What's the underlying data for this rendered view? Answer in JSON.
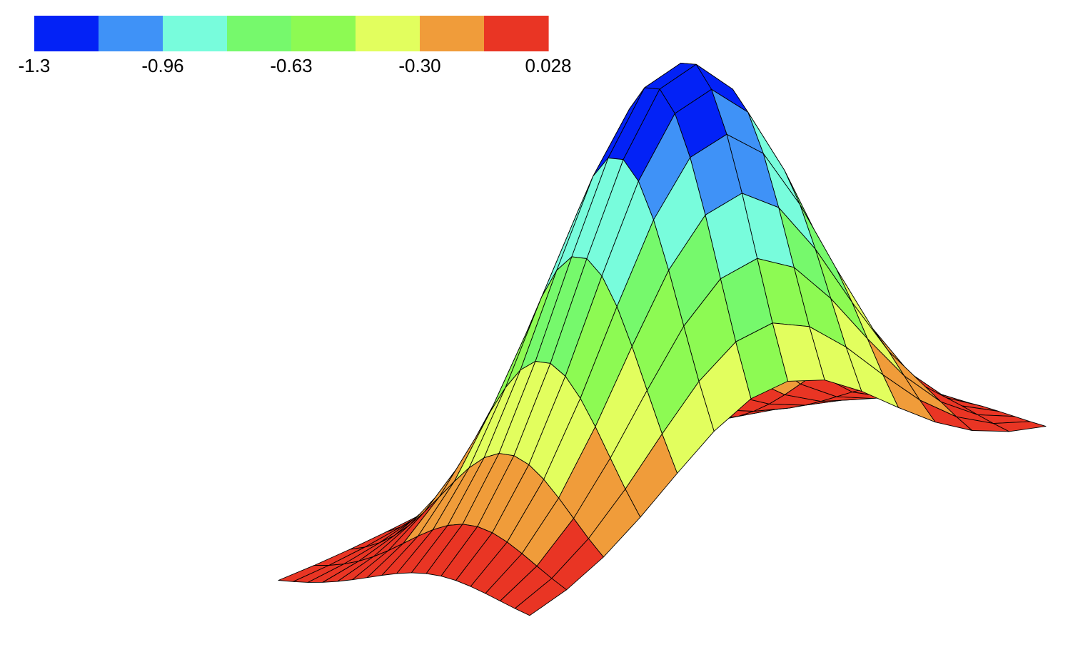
{
  "chart_data": {
    "type": "surface",
    "colorbar": {
      "min": -1.3,
      "max": 0.028,
      "tick_labels": [
        "-1.3",
        "-0.96",
        "-0.63",
        "-0.30",
        "0.028"
      ],
      "tick_values": [
        -1.3,
        -0.96,
        -0.63,
        -0.3,
        0.028
      ],
      "band_colors": [
        "#0322f6",
        "#3f92f7",
        "#78fcdc",
        "#76f96c",
        "#8dfa53",
        "#e2fe5e",
        "#f09c3a",
        "#e93524"
      ]
    },
    "surface": {
      "shape": "single-peak bump, field minimum at the crest",
      "peak_value": -1.3,
      "base_value": 0.028,
      "mesh_lines": true,
      "grid_x_cells": 17,
      "grid_y_cells": 14
    }
  }
}
